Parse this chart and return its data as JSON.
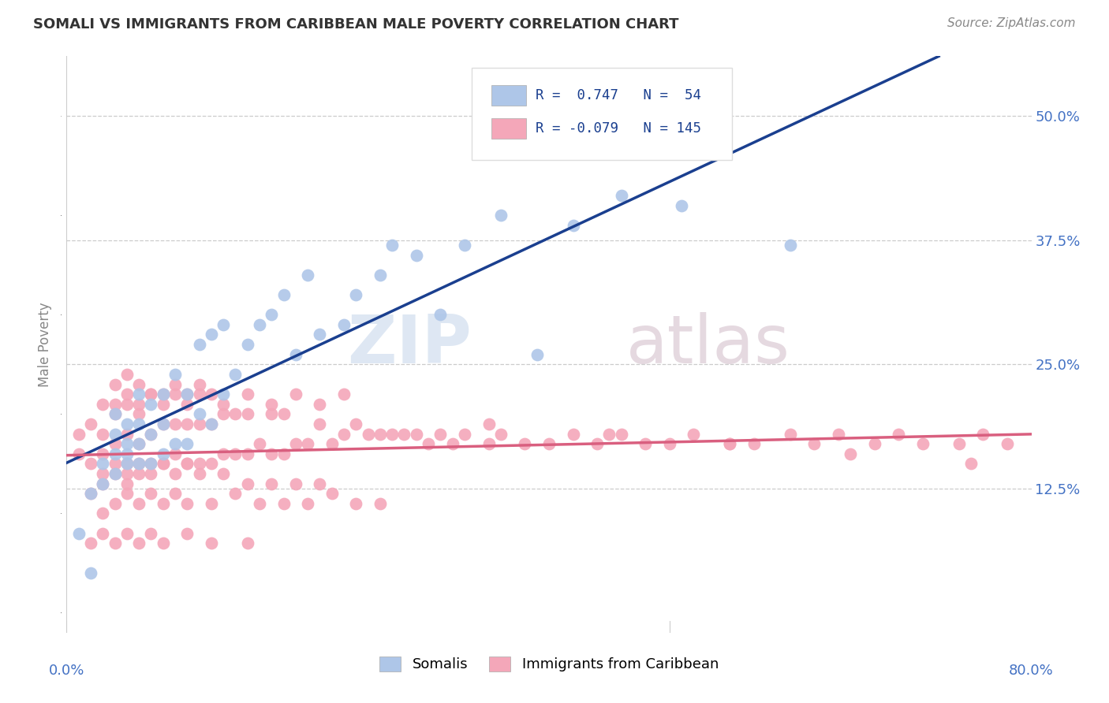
{
  "title": "SOMALI VS IMMIGRANTS FROM CARIBBEAN MALE POVERTY CORRELATION CHART",
  "source": "Source: ZipAtlas.com",
  "ylabel_label": "Male Poverty",
  "right_yticks": [
    "12.5%",
    "25.0%",
    "37.5%",
    "50.0%"
  ],
  "right_ytick_vals": [
    0.125,
    0.25,
    0.375,
    0.5
  ],
  "xmin": 0.0,
  "xmax": 0.8,
  "ymin": -0.02,
  "ymax": 0.56,
  "somali_R": 0.747,
  "somali_N": 54,
  "carib_R": -0.079,
  "carib_N": 145,
  "somali_color": "#aec6e8",
  "carib_color": "#f4a7b9",
  "somali_line_color": "#1a3f8f",
  "carib_line_color": "#d95f7f",
  "legend_somali_label": "Somalis",
  "legend_carib_label": "Immigrants from Caribbean",
  "watermark_zip": "ZIP",
  "watermark_atlas": "atlas",
  "background_color": "#ffffff",
  "grid_color": "#cccccc",
  "somali_x": [
    0.01,
    0.02,
    0.02,
    0.03,
    0.03,
    0.04,
    0.04,
    0.04,
    0.04,
    0.05,
    0.05,
    0.05,
    0.05,
    0.06,
    0.06,
    0.06,
    0.06,
    0.07,
    0.07,
    0.07,
    0.08,
    0.08,
    0.08,
    0.09,
    0.09,
    0.1,
    0.1,
    0.11,
    0.11,
    0.12,
    0.12,
    0.13,
    0.13,
    0.14,
    0.15,
    0.16,
    0.17,
    0.18,
    0.19,
    0.2,
    0.21,
    0.23,
    0.24,
    0.26,
    0.27,
    0.29,
    0.31,
    0.33,
    0.36,
    0.39,
    0.42,
    0.46,
    0.51,
    0.6
  ],
  "somali_y": [
    0.08,
    0.04,
    0.12,
    0.13,
    0.15,
    0.14,
    0.16,
    0.18,
    0.2,
    0.15,
    0.16,
    0.17,
    0.19,
    0.15,
    0.17,
    0.19,
    0.22,
    0.15,
    0.18,
    0.21,
    0.16,
    0.19,
    0.22,
    0.17,
    0.24,
    0.17,
    0.22,
    0.2,
    0.27,
    0.19,
    0.28,
    0.22,
    0.29,
    0.24,
    0.27,
    0.29,
    0.3,
    0.32,
    0.26,
    0.34,
    0.28,
    0.29,
    0.32,
    0.34,
    0.37,
    0.36,
    0.3,
    0.37,
    0.4,
    0.26,
    0.39,
    0.42,
    0.41,
    0.37
  ],
  "carib_x": [
    0.01,
    0.01,
    0.02,
    0.02,
    0.02,
    0.03,
    0.03,
    0.03,
    0.03,
    0.04,
    0.04,
    0.04,
    0.04,
    0.05,
    0.05,
    0.05,
    0.05,
    0.05,
    0.06,
    0.06,
    0.06,
    0.06,
    0.07,
    0.07,
    0.07,
    0.08,
    0.08,
    0.08,
    0.09,
    0.09,
    0.09,
    0.1,
    0.1,
    0.1,
    0.11,
    0.11,
    0.11,
    0.12,
    0.12,
    0.12,
    0.13,
    0.13,
    0.14,
    0.14,
    0.15,
    0.15,
    0.16,
    0.17,
    0.17,
    0.18,
    0.18,
    0.19,
    0.2,
    0.21,
    0.22,
    0.23,
    0.24,
    0.25,
    0.26,
    0.27,
    0.28,
    0.29,
    0.3,
    0.31,
    0.32,
    0.33,
    0.35,
    0.36,
    0.38,
    0.4,
    0.42,
    0.44,
    0.46,
    0.48,
    0.5,
    0.52,
    0.55,
    0.57,
    0.6,
    0.62,
    0.64,
    0.67,
    0.69,
    0.71,
    0.74,
    0.76,
    0.78,
    0.03,
    0.04,
    0.05,
    0.06,
    0.07,
    0.08,
    0.09,
    0.1,
    0.12,
    0.14,
    0.16,
    0.18,
    0.2,
    0.22,
    0.24,
    0.26,
    0.04,
    0.05,
    0.06,
    0.07,
    0.08,
    0.09,
    0.1,
    0.11,
    0.13,
    0.15,
    0.17,
    0.19,
    0.21,
    0.23,
    0.02,
    0.03,
    0.04,
    0.05,
    0.06,
    0.07,
    0.08,
    0.1,
    0.12,
    0.15,
    0.03,
    0.04,
    0.05,
    0.06,
    0.07,
    0.08,
    0.09,
    0.1,
    0.11,
    0.13,
    0.15,
    0.17,
    0.19,
    0.21,
    0.35,
    0.45,
    0.55,
    0.65,
    0.75
  ],
  "carib_y": [
    0.16,
    0.18,
    0.12,
    0.15,
    0.19,
    0.13,
    0.16,
    0.18,
    0.21,
    0.14,
    0.17,
    0.2,
    0.23,
    0.13,
    0.15,
    0.18,
    0.21,
    0.24,
    0.14,
    0.17,
    0.2,
    0.23,
    0.15,
    0.18,
    0.22,
    0.15,
    0.19,
    0.22,
    0.16,
    0.19,
    0.23,
    0.15,
    0.19,
    0.22,
    0.15,
    0.19,
    0.23,
    0.15,
    0.19,
    0.22,
    0.16,
    0.2,
    0.16,
    0.2,
    0.16,
    0.2,
    0.17,
    0.16,
    0.2,
    0.16,
    0.2,
    0.17,
    0.17,
    0.19,
    0.17,
    0.18,
    0.19,
    0.18,
    0.18,
    0.18,
    0.18,
    0.18,
    0.17,
    0.18,
    0.17,
    0.18,
    0.17,
    0.18,
    0.17,
    0.17,
    0.18,
    0.17,
    0.18,
    0.17,
    0.17,
    0.18,
    0.17,
    0.17,
    0.18,
    0.17,
    0.18,
    0.17,
    0.18,
    0.17,
    0.17,
    0.18,
    0.17,
    0.1,
    0.11,
    0.12,
    0.11,
    0.12,
    0.11,
    0.12,
    0.11,
    0.11,
    0.12,
    0.11,
    0.11,
    0.11,
    0.12,
    0.11,
    0.11,
    0.21,
    0.22,
    0.21,
    0.22,
    0.21,
    0.22,
    0.21,
    0.22,
    0.21,
    0.22,
    0.21,
    0.22,
    0.21,
    0.22,
    0.07,
    0.08,
    0.07,
    0.08,
    0.07,
    0.08,
    0.07,
    0.08,
    0.07,
    0.07,
    0.14,
    0.15,
    0.14,
    0.15,
    0.14,
    0.15,
    0.14,
    0.15,
    0.14,
    0.14,
    0.13,
    0.13,
    0.13,
    0.13,
    0.19,
    0.18,
    0.17,
    0.16,
    0.15
  ]
}
